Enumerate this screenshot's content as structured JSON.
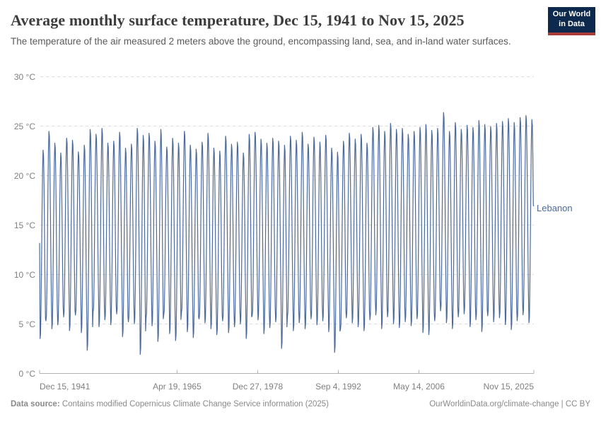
{
  "header": {
    "title": "Average monthly surface temperature, Dec 15, 1941 to Nov 15, 2025",
    "subtitle": "The temperature of the air measured 2 meters above the ground, encompassing land, sea, and in-land water surfaces.",
    "logo": {
      "line1": "Our World",
      "line2": "in Data"
    }
  },
  "chart_data": {
    "type": "line",
    "title": "Average monthly surface temperature, Dec 15, 1941 to Nov 15, 2025",
    "xlabel": "",
    "ylabel": "",
    "unit": "°C",
    "ylim": [
      0,
      30
    ],
    "grid": true,
    "legend_position": "right",
    "line_color": "#4c6a9c",
    "grid_color": "#dcdcdc",
    "axis_color": "#b3b3b3",
    "yticks": [
      {
        "value": 0,
        "label": "0 °C"
      },
      {
        "value": 5,
        "label": "5 °C"
      },
      {
        "value": 10,
        "label": "10 °C"
      },
      {
        "value": 15,
        "label": "15 °C"
      },
      {
        "value": 20,
        "label": "20 °C"
      },
      {
        "value": 25,
        "label": "25 °C"
      },
      {
        "value": 30,
        "label": "30 °C"
      }
    ],
    "xticks": [
      {
        "label": "Dec 15, 1941",
        "t": 1941.958,
        "anchor": "start"
      },
      {
        "label": "Apr 19, 1965",
        "t": 1965.3,
        "anchor": "middle"
      },
      {
        "label": "Dec 27, 1978",
        "t": 1978.99,
        "anchor": "middle"
      },
      {
        "label": "Sep 4, 1992",
        "t": 1992.68,
        "anchor": "middle"
      },
      {
        "label": "May 14, 2006",
        "t": 2006.37,
        "anchor": "middle"
      },
      {
        "label": "Nov 15, 2025",
        "t": 2025.875,
        "anchor": "end"
      }
    ],
    "x_start": 1941.958,
    "x_end": 2025.875,
    "series": [
      {
        "name": "Lebanon",
        "start_date": "Dec 15, 1941",
        "start_value": 13.2,
        "end_date": "Nov 15, 2025",
        "end_value": 16.9,
        "year_start": 1942,
        "summer_peaks": [
          22.7,
          24.6,
          23.4,
          22.4,
          23.9,
          23.7,
          22.5,
          23.2,
          24.8,
          24.3,
          24.9,
          23.4,
          23.6,
          24.5,
          22.9,
          23.3,
          24.9,
          24.2,
          24.4,
          23.6,
          24.8,
          23.0,
          23.9,
          23.4,
          24.6,
          23.2,
          22.8,
          23.5,
          24.4,
          22.9,
          22.6,
          24.1,
          23.3,
          23.5,
          22.4,
          24.3,
          24.5,
          23.8,
          23.4,
          23.9,
          23.6,
          23.2,
          24.1,
          23.7,
          24.5,
          23.3,
          24.0,
          23.5,
          24.2,
          22.9,
          22.5,
          23.6,
          24.4,
          23.8,
          24.3,
          23.4,
          25.0,
          25.2,
          24.6,
          25.4,
          24.8,
          24.9,
          24.3,
          24.6,
          25.0,
          25.3,
          24.7,
          24.9,
          26.5,
          24.6,
          25.5,
          24.8,
          25.2,
          25.0,
          25.7,
          25.3,
          25.1,
          25.4,
          25.6,
          25.9,
          25.5,
          26.0,
          26.2,
          25.8
        ],
        "winter_troughs": [
          3.4,
          5.2,
          4.4,
          4.8,
          5.6,
          4.2,
          5.8,
          4.0,
          2.2,
          6.1,
          4.6,
          5.3,
          4.8,
          5.9,
          3.6,
          5.1,
          4.9,
          1.8,
          5.5,
          4.7,
          3.1,
          5.8,
          3.9,
          3.2,
          6.0,
          4.1,
          3.5,
          5.4,
          5.0,
          4.4,
          3.8,
          5.2,
          4.0,
          4.6,
          4.9,
          3.4,
          5.7,
          5.3,
          3.9,
          4.5,
          5.1,
          2.4,
          5.6,
          4.2,
          5.0,
          4.4,
          5.4,
          4.8,
          5.2,
          4.1,
          2.0,
          4.3,
          5.5,
          5.0,
          4.6,
          4.2,
          5.3,
          5.8,
          4.4,
          5.6,
          4.9,
          4.5,
          5.1,
          4.7,
          5.4,
          4.0,
          3.8,
          5.2,
          6.2,
          5.0,
          4.4,
          5.6,
          5.9,
          4.6,
          5.3,
          4.1,
          5.7,
          5.1,
          5.5,
          4.8,
          4.3,
          5.2,
          5.8,
          5.0
        ]
      }
    ]
  },
  "footer": {
    "datasource_label": "Data source:",
    "datasource_text": " Contains modified Copernicus Climate Change Service information (2025)",
    "attribution": "OurWorldinData.org/climate-change | CC BY"
  }
}
